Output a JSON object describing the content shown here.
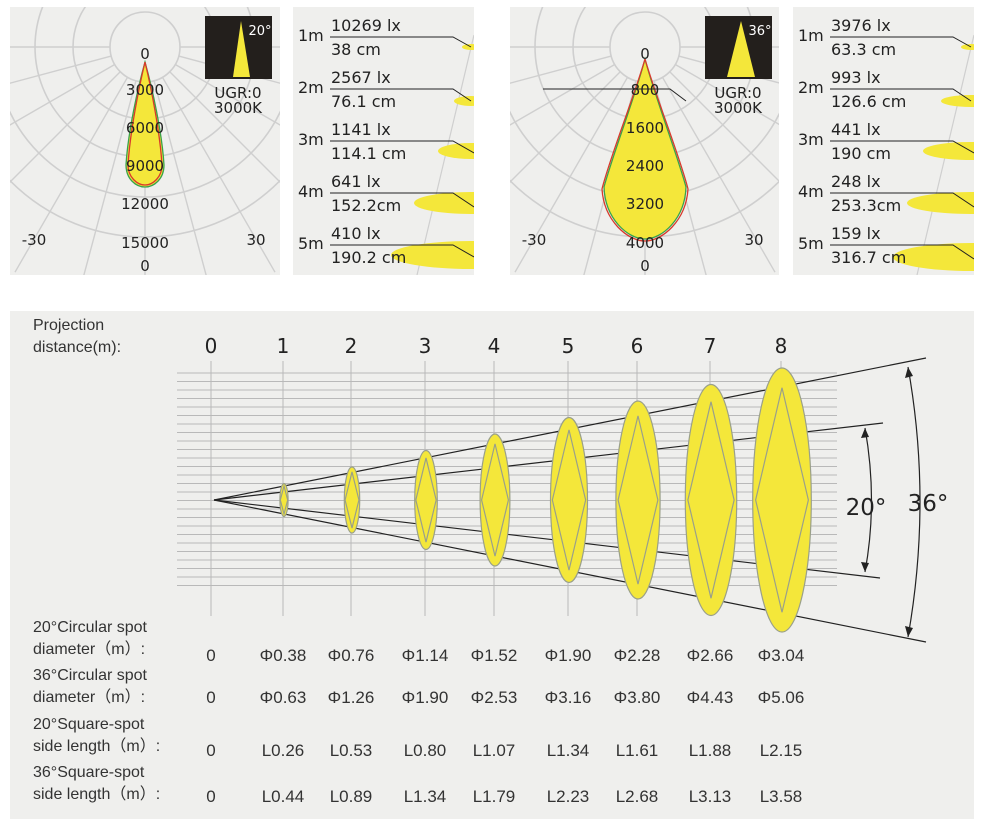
{
  "polar_charts": [
    {
      "beam_badge": "20°",
      "ugr": "UGR:0",
      "cct": "3000K",
      "radial_labels": [
        "0",
        "3000",
        "6000",
        "9000",
        "12000",
        "15000"
      ],
      "angle_left": "-30",
      "angle_right": "30",
      "bottom_label": "0"
    },
    {
      "beam_badge": "36°",
      "ugr": "UGR:0",
      "cct": "3000K",
      "radial_labels": [
        "0",
        "800",
        "1600",
        "2400",
        "3200",
        "4000"
      ],
      "angle_left": "-30",
      "angle_right": "30",
      "bottom_label": "0"
    }
  ],
  "illuminance_tables": [
    {
      "rows": [
        {
          "distance": "1m",
          "lux": "10269 lx",
          "spot": "38 cm"
        },
        {
          "distance": "2m",
          "lux": "2567 lx",
          "spot": "76.1 cm"
        },
        {
          "distance": "3m",
          "lux": "1141 lx",
          "spot": "114.1 cm"
        },
        {
          "distance": "4m",
          "lux": "641 lx",
          "spot": "152.2cm"
        },
        {
          "distance": "5m",
          "lux": "410 lx",
          "spot": "190.2 cm"
        }
      ]
    },
    {
      "rows": [
        {
          "distance": "1m",
          "lux": "3976 lx",
          "spot": "63.3 cm"
        },
        {
          "distance": "2m",
          "lux": "993 lx",
          "spot": "126.6 cm"
        },
        {
          "distance": "3m",
          "lux": "441 lx",
          "spot": "190 cm"
        },
        {
          "distance": "4m",
          "lux": "248 lx",
          "spot": "253.3cm"
        },
        {
          "distance": "5m",
          "lux": "159 lx",
          "spot": "316.7 cm"
        }
      ]
    }
  ],
  "projection": {
    "title_line1": "Projection",
    "title_line2": "distance(m):",
    "distances": [
      "0",
      "1",
      "2",
      "3",
      "4",
      "5",
      "6",
      "7",
      "8"
    ],
    "angle_inner": "20°",
    "angle_outer": "36°",
    "spot_scale": [
      0,
      1,
      2,
      3,
      4,
      5,
      6,
      7,
      8
    ],
    "rows": [
      {
        "label1": "20°Circular spot",
        "label2": "diameter（m）:",
        "values": [
          "0",
          "Φ0.38",
          "Φ0.76",
          "Φ1.14",
          "Φ1.52",
          "Φ1.90",
          "Φ2.28",
          "Φ2.66",
          "Φ3.04"
        ]
      },
      {
        "label1": "36°Circular spot",
        "label2": "diameter（m）:",
        "values": [
          "0",
          "Φ0.63",
          "Φ1.26",
          "Φ1.90",
          "Φ2.53",
          "Φ3.16",
          "Φ3.80",
          "Φ4.43",
          "Φ5.06"
        ]
      },
      {
        "label1": "20°Square-spot",
        "label2": "side length（m）:",
        "values": [
          "0",
          "L0.26",
          "L0.53",
          "L0.80",
          "L1.07",
          "L1.34",
          "L1.61",
          "L1.88",
          "L2.15"
        ]
      },
      {
        "label1": "36°Square-spot",
        "label2": "side length（m）:",
        "values": [
          "0",
          "L0.44",
          "L0.89",
          "L1.34",
          "L1.79",
          "L2.23",
          "L2.68",
          "L3.13",
          "L3.58"
        ]
      }
    ]
  },
  "colors": {
    "panel_bg": "#efefed",
    "spot_yellow": "#f4e73a",
    "grid": "#cfcfcf",
    "badge_bg": "#231f1c",
    "curve_red": "#d8392c",
    "curve_green": "#3aa24a"
  }
}
